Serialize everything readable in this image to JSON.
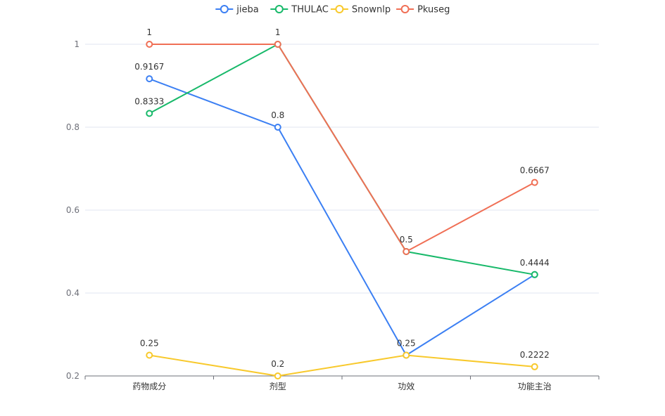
{
  "chart_data": {
    "type": "line",
    "title": "",
    "xlabel": "",
    "ylabel": "",
    "categories": [
      "药物成分",
      "剂型",
      "功效",
      "功能主治"
    ],
    "ylim": [
      0.2,
      1.0
    ],
    "yticks": [
      0.2,
      0.4,
      0.6,
      0.8,
      1
    ],
    "ytick_labels": [
      "0.2",
      "0.4",
      "0.6",
      "0.8",
      "1"
    ],
    "grid": true,
    "legend_position": "top-center",
    "series": [
      {
        "name": "jieba",
        "color": "#3b7ff3",
        "values": [
          0.9167,
          0.8,
          0.25,
          0.4444
        ],
        "labels": [
          "0.9167",
          "0.8",
          "",
          ""
        ]
      },
      {
        "name": "THULAC",
        "color": "#18b96a",
        "values": [
          0.8333,
          1,
          0.5,
          0.4444
        ],
        "labels": [
          "0.8333",
          "",
          "",
          "0.4444"
        ]
      },
      {
        "name": "Snownlp",
        "color": "#f8c92c",
        "values": [
          0.25,
          0.2,
          0.25,
          0.2222
        ],
        "labels": [
          "0.25",
          "0.2",
          "0.25",
          "0.2222"
        ]
      },
      {
        "name": "Pkuseg",
        "color": "#f06f55",
        "values": [
          1,
          1,
          0.5,
          0.6667
        ],
        "labels": [
          "1",
          "1",
          "0.5",
          "0.6667"
        ]
      }
    ]
  }
}
